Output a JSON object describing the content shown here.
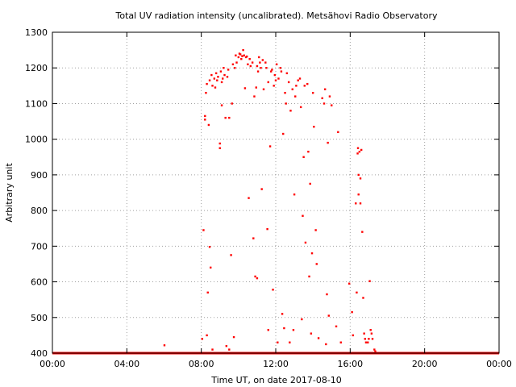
{
  "chart_data": {
    "type": "scatter",
    "title": "Total UV radiation intensity (uncalibrated). Metsähovi Radio Observatory",
    "xlabel": "Time UT, on date 2017-08-10",
    "ylabel": "Arbitrary unit",
    "xlim": [
      0,
      24
    ],
    "ylim": [
      400,
      1300
    ],
    "x_ticks": [
      {
        "value": 0,
        "label": "00:00"
      },
      {
        "value": 4,
        "label": "04:00"
      },
      {
        "value": 8,
        "label": "08:00"
      },
      {
        "value": 12,
        "label": "12:00"
      },
      {
        "value": 16,
        "label": "16:00"
      },
      {
        "value": 20,
        "label": "20:00"
      },
      {
        "value": 24,
        "label": "00:00"
      }
    ],
    "y_ticks": [
      {
        "value": 400,
        "label": "400"
      },
      {
        "value": 500,
        "label": "500"
      },
      {
        "value": 600,
        "label": "600"
      },
      {
        "value": 700,
        "label": "700"
      },
      {
        "value": 800,
        "label": "800"
      },
      {
        "value": 900,
        "label": "900"
      },
      {
        "value": 1000,
        "label": "1000"
      },
      {
        "value": 1100,
        "label": "1100"
      },
      {
        "value": 1200,
        "label": "1200"
      },
      {
        "value": 1300,
        "label": "1300"
      }
    ],
    "grid": true,
    "grid_style": "dotted",
    "series": [
      {
        "color": "#ff0000",
        "baseline": {
          "value": 400,
          "x_range": [
            0,
            24
          ]
        },
        "points": [
          [
            6.02,
            422
          ],
          [
            8.05,
            440
          ],
          [
            8.12,
            745
          ],
          [
            8.2,
            1065
          ],
          [
            8.2,
            1055
          ],
          [
            8.25,
            1130
          ],
          [
            8.3,
            1155
          ],
          [
            8.3,
            450
          ],
          [
            8.35,
            570
          ],
          [
            8.4,
            1040
          ],
          [
            8.45,
            1165
          ],
          [
            8.45,
            698
          ],
          [
            8.5,
            640
          ],
          [
            8.55,
            1180
          ],
          [
            8.6,
            1150
          ],
          [
            8.6,
            410
          ],
          [
            8.7,
            1170
          ],
          [
            8.75,
            1145
          ],
          [
            8.8,
            1185
          ],
          [
            8.85,
            1165
          ],
          [
            8.9,
            1175
          ],
          [
            9.0,
            975
          ],
          [
            9.0,
            988
          ],
          [
            9.05,
            1190
          ],
          [
            9.1,
            1160
          ],
          [
            9.1,
            1095
          ],
          [
            9.15,
            1170
          ],
          [
            9.2,
            1200
          ],
          [
            9.25,
            1180
          ],
          [
            9.3,
            1060
          ],
          [
            9.35,
            420
          ],
          [
            9.4,
            1175
          ],
          [
            9.45,
            1195
          ],
          [
            9.5,
            1060
          ],
          [
            9.5,
            410
          ],
          [
            9.6,
            675
          ],
          [
            9.65,
            1100
          ],
          [
            9.7,
            1210
          ],
          [
            9.75,
            445
          ],
          [
            9.8,
            1200
          ],
          [
            9.85,
            1235
          ],
          [
            9.9,
            1215
          ],
          [
            10.0,
            1230
          ],
          [
            10.05,
            1240
          ],
          [
            10.1,
            1238
          ],
          [
            10.15,
            1225
          ],
          [
            10.2,
            1233
          ],
          [
            10.25,
            1250
          ],
          [
            10.3,
            1235
          ],
          [
            10.35,
            1143
          ],
          [
            10.4,
            1230
          ],
          [
            10.45,
            1232
          ],
          [
            10.5,
            1210
          ],
          [
            10.55,
            835
          ],
          [
            10.6,
            1225
          ],
          [
            10.65,
            1205
          ],
          [
            10.75,
            1215
          ],
          [
            10.8,
            722
          ],
          [
            10.85,
            1120
          ],
          [
            10.9,
            615
          ],
          [
            10.95,
            1145
          ],
          [
            11.0,
            610
          ],
          [
            11.0,
            1205
          ],
          [
            11.05,
            1190
          ],
          [
            11.1,
            1230
          ],
          [
            11.15,
            1215
          ],
          [
            11.2,
            1200
          ],
          [
            11.25,
            860
          ],
          [
            11.3,
            1222
          ],
          [
            11.35,
            1140
          ],
          [
            11.45,
            1215
          ],
          [
            11.5,
            1200
          ],
          [
            11.55,
            748
          ],
          [
            11.6,
            465
          ],
          [
            11.6,
            1160
          ],
          [
            11.7,
            980
          ],
          [
            11.75,
            1190
          ],
          [
            11.8,
            1195
          ],
          [
            11.85,
            578
          ],
          [
            11.9,
            1150
          ],
          [
            11.95,
            1180
          ],
          [
            12.0,
            1165
          ],
          [
            12.05,
            1210
          ],
          [
            12.1,
            430
          ],
          [
            12.15,
            1170
          ],
          [
            12.25,
            1200
          ],
          [
            12.3,
            1190
          ],
          [
            12.35,
            510
          ],
          [
            12.4,
            1015
          ],
          [
            12.45,
            470
          ],
          [
            12.5,
            1130
          ],
          [
            12.55,
            1100
          ],
          [
            12.6,
            1185
          ],
          [
            12.7,
            1160
          ],
          [
            12.75,
            430
          ],
          [
            12.8,
            1080
          ],
          [
            12.9,
            1140
          ],
          [
            12.95,
            465
          ],
          [
            13.0,
            845
          ],
          [
            13.05,
            1120
          ],
          [
            13.1,
            1150
          ],
          [
            13.2,
            1165
          ],
          [
            13.3,
            1170
          ],
          [
            13.35,
            1090
          ],
          [
            13.4,
            495
          ],
          [
            13.45,
            785
          ],
          [
            13.5,
            950
          ],
          [
            13.55,
            1150
          ],
          [
            13.6,
            710
          ],
          [
            13.7,
            1155
          ],
          [
            13.75,
            965
          ],
          [
            13.8,
            615
          ],
          [
            13.85,
            875
          ],
          [
            13.9,
            455
          ],
          [
            13.95,
            680
          ],
          [
            14.0,
            1130
          ],
          [
            14.05,
            1035
          ],
          [
            14.15,
            745
          ],
          [
            14.2,
            650
          ],
          [
            14.3,
            442
          ],
          [
            14.5,
            1115
          ],
          [
            14.6,
            1100
          ],
          [
            14.65,
            1140
          ],
          [
            14.7,
            425
          ],
          [
            14.75,
            565
          ],
          [
            14.8,
            990
          ],
          [
            14.85,
            505
          ],
          [
            14.9,
            1120
          ],
          [
            15.0,
            1095
          ],
          [
            15.25,
            475
          ],
          [
            15.35,
            1020
          ],
          [
            15.5,
            430
          ],
          [
            15.95,
            595
          ],
          [
            16.1,
            515
          ],
          [
            16.15,
            450
          ],
          [
            16.3,
            820
          ],
          [
            16.35,
            570
          ],
          [
            16.4,
            960
          ],
          [
            16.42,
            975
          ],
          [
            16.45,
            900
          ],
          [
            16.45,
            845
          ],
          [
            16.5,
            965
          ],
          [
            16.55,
            890
          ],
          [
            16.55,
            820
          ],
          [
            16.6,
            970
          ],
          [
            16.65,
            740
          ],
          [
            16.7,
            555
          ],
          [
            16.75,
            455
          ],
          [
            16.8,
            440
          ],
          [
            16.85,
            430
          ],
          [
            16.95,
            430
          ],
          [
            17.0,
            440
          ],
          [
            17.05,
            602
          ],
          [
            17.1,
            465
          ],
          [
            17.15,
            455
          ],
          [
            17.2,
            440
          ],
          [
            17.3,
            410
          ],
          [
            17.35,
            405
          ]
        ]
      }
    ]
  }
}
